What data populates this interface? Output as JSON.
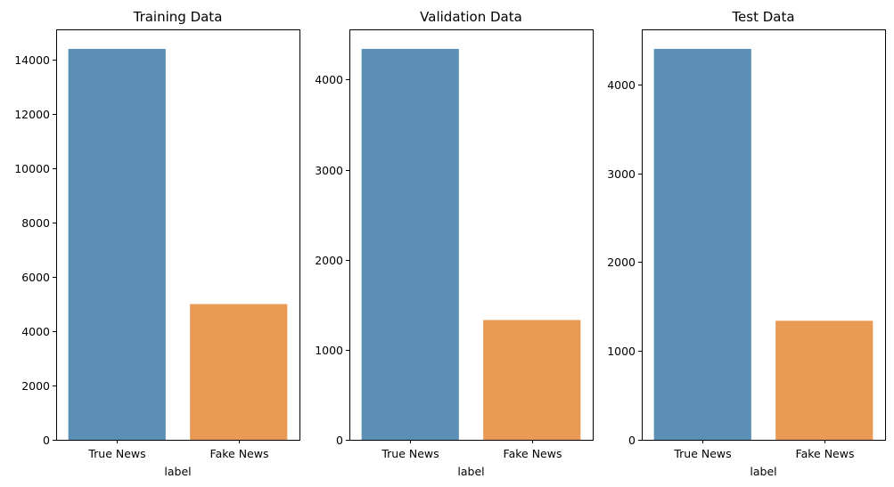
{
  "chart_data": [
    {
      "type": "bar",
      "title": "Training Data",
      "xlabel": "label",
      "ylabel": "",
      "categories": [
        "True News",
        "Fake News"
      ],
      "values": [
        14400,
        5000
      ],
      "ylim": [
        0,
        15120
      ],
      "yticks": [
        0,
        2000,
        4000,
        6000,
        8000,
        10000,
        12000,
        14000
      ],
      "colors": [
        "#5b8fb5",
        "#e99b55"
      ],
      "grid": false,
      "legend": "none"
    },
    {
      "type": "bar",
      "title": "Validation Data",
      "xlabel": "label",
      "ylabel": "",
      "categories": [
        "True News",
        "Fake News"
      ],
      "values": [
        4340,
        1330
      ],
      "ylim": [
        0,
        4557
      ],
      "yticks": [
        0,
        1000,
        2000,
        3000,
        4000
      ],
      "colors": [
        "#5b8fb5",
        "#e99b55"
      ],
      "grid": false,
      "legend": "none"
    },
    {
      "type": "bar",
      "title": "Test Data",
      "xlabel": "label",
      "ylabel": "",
      "categories": [
        "True News",
        "Fake News"
      ],
      "values": [
        4400,
        1340
      ],
      "ylim": [
        0,
        4620
      ],
      "yticks": [
        0,
        1000,
        2000,
        3000,
        4000
      ],
      "colors": [
        "#5b8fb5",
        "#e99b55"
      ],
      "grid": false,
      "legend": "none"
    }
  ]
}
